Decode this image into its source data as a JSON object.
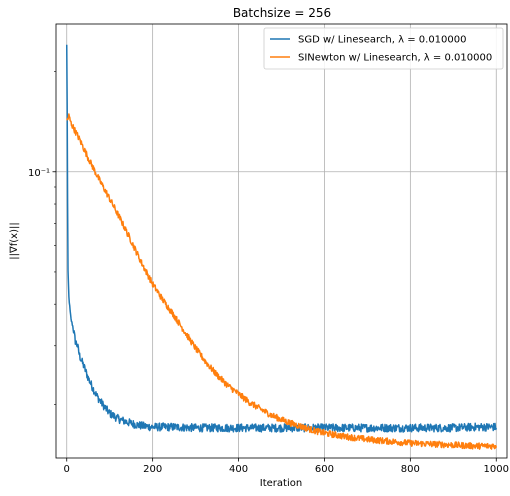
{
  "chart_data": {
    "type": "line",
    "title": "Batchsize = 256",
    "xlabel": "Iteration",
    "ylabel": "||∇f(x)||",
    "xlim": [
      -25,
      1025
    ],
    "ylim": [
      0.0138,
      0.278
    ],
    "yscale": "log",
    "grid": true,
    "legend_placement": "top-right",
    "x_ticks": [
      0,
      200,
      400,
      600,
      800,
      1000
    ],
    "x_tick_labels": [
      "0",
      "200",
      "400",
      "600",
      "800",
      "1000"
    ],
    "y_ticks": [
      0.1
    ],
    "y_tick_labels": [
      "10⁻¹"
    ],
    "y_minor_ticks": [
      0.02,
      0.03,
      0.04,
      0.05,
      0.06,
      0.07,
      0.08,
      0.09,
      0.2
    ],
    "series": [
      {
        "name": "SGD w/ Linesearch, λ = 0.010000",
        "color": "#1f77b4",
        "x": [
          0,
          1,
          2,
          3,
          5,
          8,
          10,
          15,
          20,
          25,
          30,
          40,
          50,
          60,
          70,
          80,
          90,
          100,
          120,
          140,
          160,
          180,
          200,
          250,
          300,
          350,
          400,
          450,
          500,
          550,
          600,
          650,
          700,
          750,
          800,
          850,
          900,
          950,
          1000
        ],
        "y": [
          0.24,
          0.16,
          0.08,
          0.05,
          0.042,
          0.038,
          0.036,
          0.034,
          0.031,
          0.03,
          0.028,
          0.026,
          0.024,
          0.0225,
          0.0212,
          0.0203,
          0.0195,
          0.0188,
          0.0181,
          0.0177,
          0.0174,
          0.0172,
          0.0171,
          0.0171,
          0.017,
          0.017,
          0.017,
          0.017,
          0.017,
          0.017,
          0.017,
          0.017,
          0.017,
          0.017,
          0.017,
          0.017,
          0.017,
          0.0171,
          0.0171
        ]
      },
      {
        "name": "SINewton w/ Linesearch, λ = 0.010000",
        "color": "#ff7f0e",
        "x": [
          0,
          5,
          10,
          30,
          50,
          75,
          100,
          125,
          150,
          175,
          200,
          225,
          250,
          275,
          300,
          325,
          350,
          375,
          400,
          425,
          450,
          475,
          500,
          525,
          550,
          575,
          600,
          650,
          700,
          750,
          800,
          850,
          900,
          950,
          1000
        ],
        "y": [
          0.142,
          0.147,
          0.14,
          0.125,
          0.11,
          0.095,
          0.083,
          0.072,
          0.062,
          0.053,
          0.046,
          0.041,
          0.037,
          0.033,
          0.0295,
          0.0267,
          0.0245,
          0.0228,
          0.0215,
          0.0203,
          0.0194,
          0.0186,
          0.018,
          0.0175,
          0.0171,
          0.0167,
          0.0164,
          0.016,
          0.0157,
          0.0155,
          0.0153,
          0.0152,
          0.0151,
          0.015,
          0.015
        ]
      }
    ]
  }
}
